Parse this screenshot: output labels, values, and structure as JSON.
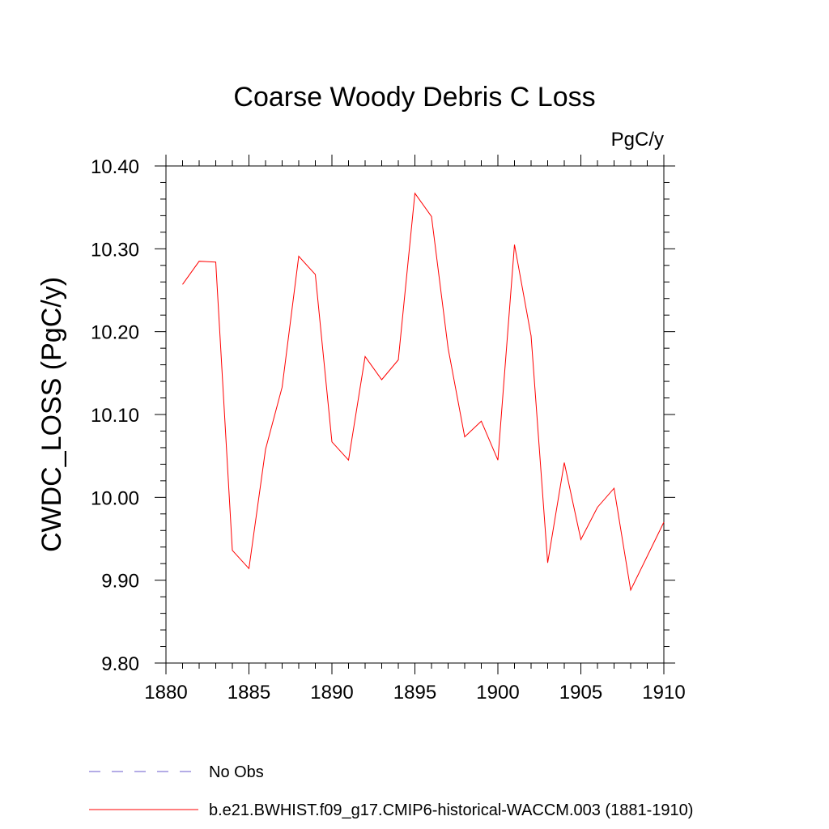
{
  "chart_data": {
    "type": "line",
    "title": "Coarse Woody Debris C Loss",
    "units_label": "PgC/y",
    "ylabel": "CWDC_LOSS  (PgC/y)",
    "xlabel": "",
    "xlim": [
      1880,
      1910
    ],
    "ylim": [
      9.8,
      10.4
    ],
    "x_ticks": [
      "1880",
      "1885",
      "1890",
      "1895",
      "1900",
      "1905",
      "1910"
    ],
    "y_ticks": [
      "9.80",
      "9.90",
      "10.00",
      "10.10",
      "10.20",
      "10.30",
      "10.40"
    ],
    "grid": false,
    "legend_position": "bottom",
    "series": [
      {
        "name": "b.e21.BWHIST.f09_g17.CMIP6-historical-WACCM.003 (1881-1910)",
        "color": "#ff0000",
        "style": "solid",
        "x": [
          1881,
          1882,
          1883,
          1884,
          1885,
          1886,
          1887,
          1888,
          1889,
          1890,
          1891,
          1892,
          1893,
          1894,
          1895,
          1896,
          1897,
          1898,
          1899,
          1900,
          1901,
          1902,
          1903,
          1904,
          1905,
          1906,
          1907,
          1908,
          1909,
          1910
        ],
        "y": [
          10.257,
          10.285,
          10.284,
          9.936,
          9.914,
          10.058,
          10.133,
          10.291,
          10.269,
          10.067,
          10.045,
          10.17,
          10.142,
          10.166,
          10.367,
          10.339,
          10.18,
          10.073,
          10.092,
          10.045,
          10.305,
          10.195,
          9.921,
          10.042,
          9.949,
          9.988,
          10.011,
          9.888,
          9.929,
          9.97
        ]
      }
    ],
    "legend": [
      {
        "label": "No Obs",
        "color": "#6a5acd",
        "style": "dashed"
      },
      {
        "label": "b.e21.BWHIST.f09_g17.CMIP6-historical-WACCM.003 (1881-1910)",
        "color": "#ff0000",
        "style": "solid"
      }
    ]
  }
}
